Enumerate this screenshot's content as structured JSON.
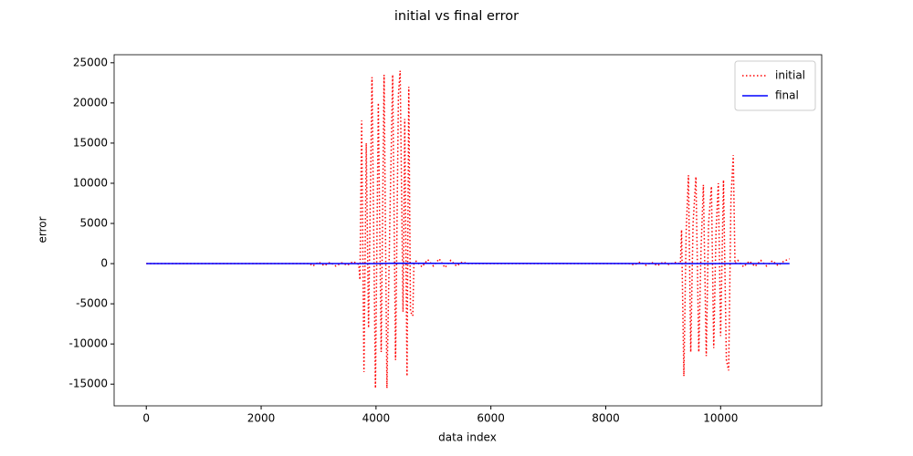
{
  "chart_data": {
    "type": "line",
    "title": "initial vs final error",
    "xlabel": "data index",
    "ylabel": "error",
    "xlim": [
      -560,
      11760
    ],
    "ylim": [
      -17700,
      26000
    ],
    "xticks": [
      0,
      2000,
      4000,
      6000,
      8000,
      10000
    ],
    "yticks": [
      -15000,
      -10000,
      -5000,
      0,
      5000,
      10000,
      15000,
      20000,
      25000
    ],
    "legend": "upper right",
    "series": [
      {
        "name": "initial",
        "color": "#ff0000",
        "style": "dotted",
        "x": [
          0,
          2850,
          2900,
          3000,
          3100,
          3200,
          3300,
          3400,
          3500,
          3600,
          3700,
          3720,
          3750,
          3790,
          3830,
          3870,
          3930,
          3990,
          4040,
          4090,
          4140,
          4190,
          4240,
          4290,
          4340,
          4390,
          4420,
          4470,
          4500,
          4540,
          4570,
          4600,
          4640,
          4660,
          4700,
          4800,
          4900,
          5000,
          5100,
          5200,
          5300,
          5400,
          5500,
          5600,
          8400,
          8500,
          8600,
          8700,
          8800,
          8900,
          9000,
          9100,
          9200,
          9300,
          9320,
          9360,
          9400,
          9440,
          9480,
          9520,
          9570,
          9620,
          9660,
          9700,
          9750,
          9790,
          9840,
          9880,
          9920,
          9960,
          10000,
          10050,
          10100,
          10140,
          10180,
          10220,
          10250,
          10300,
          10400,
          10500,
          10600,
          10700,
          10800,
          10900,
          11000,
          11100,
          11200
        ],
        "values": [
          0,
          0,
          -300,
          200,
          -250,
          150,
          -300,
          100,
          -200,
          250,
          -100,
          -2000,
          17800,
          -13500,
          15000,
          -8000,
          23200,
          -15500,
          20000,
          -11000,
          23500,
          -15500,
          5000,
          23500,
          -12000,
          21000,
          24000,
          -6000,
          18000,
          -14000,
          22000,
          -6000,
          -6500,
          0,
          300,
          -400,
          500,
          -300,
          600,
          -500,
          400,
          -300,
          200,
          0,
          0,
          -150,
          200,
          -200,
          150,
          -250,
          200,
          -100,
          150,
          0,
          4200,
          -14000,
          4000,
          11000,
          -11000,
          5000,
          10800,
          -11000,
          2000,
          9800,
          -11500,
          5000,
          9600,
          -10500,
          4000,
          10000,
          -9000,
          10400,
          -12000,
          -13300,
          8000,
          13500,
          0,
          400,
          -400,
          300,
          -350,
          400,
          -300,
          350,
          -250,
          300,
          600
        ]
      },
      {
        "name": "final",
        "color": "#0000ff",
        "style": "solid",
        "x": [
          0,
          4000,
          4300,
          10000,
          11200
        ],
        "values": [
          0,
          0,
          50,
          0,
          0
        ]
      }
    ]
  }
}
